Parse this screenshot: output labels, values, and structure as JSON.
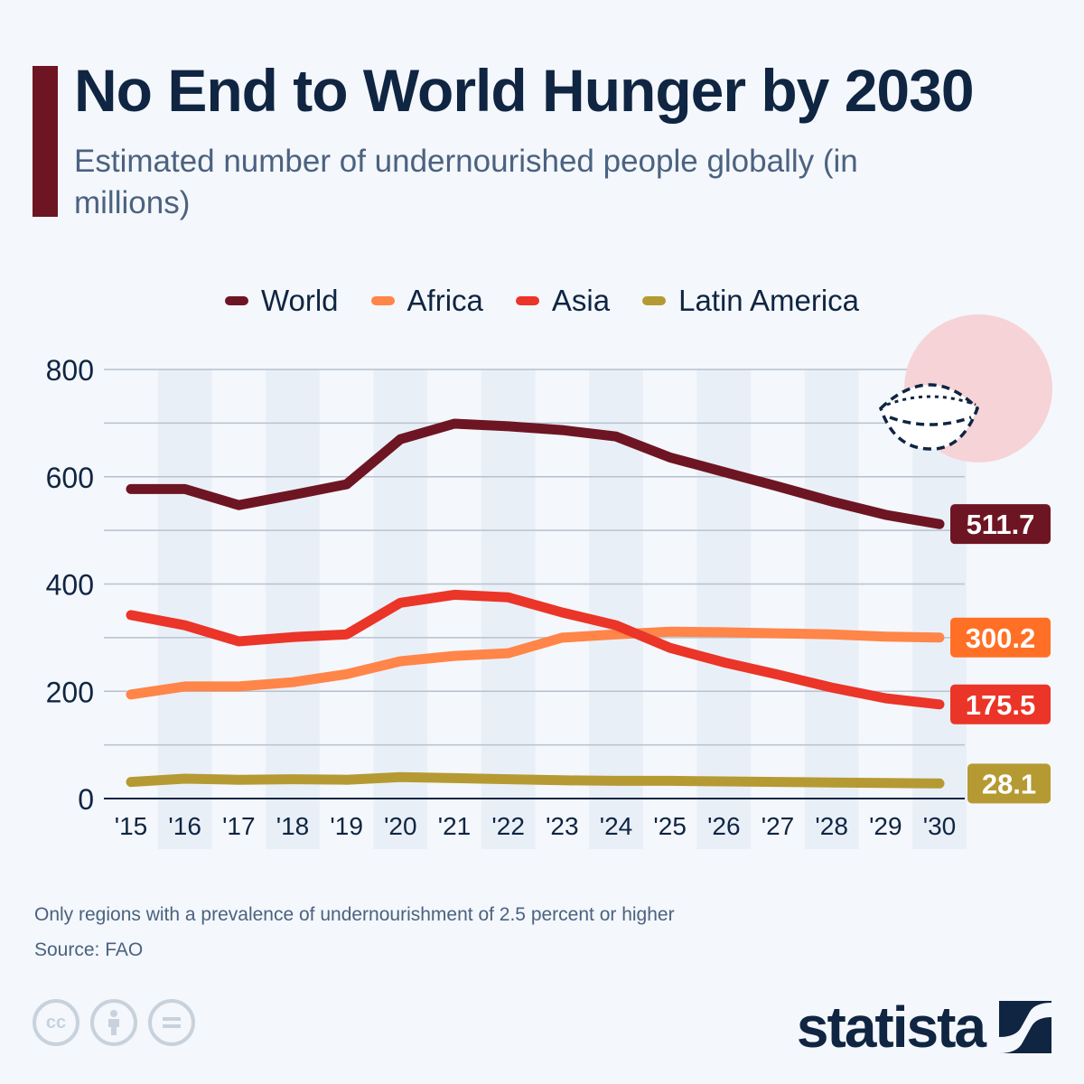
{
  "header": {
    "title": "No End to World Hunger by 2030",
    "subtitle": "Estimated number of undernourished people globally (in millions)"
  },
  "footer": {
    "note": "Only regions with a prevalence of undernourishment of 2.5 percent or higher",
    "source": "Source: FAO",
    "license_icons": [
      "cc-icon",
      "by-icon",
      "nd-icon"
    ],
    "brand": "statista"
  },
  "colors": {
    "background": "#f4f7fb",
    "title": "#0f2542",
    "accent": "#6e1523"
  },
  "chart_data": {
    "type": "line",
    "title": "No End to World Hunger by 2030",
    "subtitle": "Estimated number of undernourished people globally (in millions)",
    "xlabel": "",
    "ylabel": "",
    "categories": [
      "'15",
      "'16",
      "'17",
      "'18",
      "'19",
      "'20",
      "'21",
      "'22",
      "'23",
      "'24",
      "'25",
      "'26",
      "'27",
      "'28",
      "'29",
      "'30"
    ],
    "ylim": [
      0,
      800
    ],
    "yticks": [
      0,
      200,
      400,
      600,
      800
    ],
    "grid": true,
    "legend_position": "top-center",
    "series": [
      {
        "name": "World",
        "color": "#6e1523",
        "label_color": "#6e1523",
        "end_label": "511.7",
        "values": [
          577,
          577,
          547,
          566,
          586,
          670,
          699,
          694,
          687,
          675,
          636,
          609,
          582,
          554,
          529,
          511.7
        ]
      },
      {
        "name": "Africa",
        "color": "#ff8548",
        "label_color": "#ff7026",
        "end_label": "300.2",
        "values": [
          194,
          209,
          209,
          217,
          232,
          256,
          266,
          271,
          300,
          306,
          311,
          310,
          308,
          306,
          302,
          300.2
        ]
      },
      {
        "name": "Asia",
        "color": "#ea3528",
        "label_color": "#ea3528",
        "end_label": "175.5",
        "values": [
          342,
          323,
          293,
          301,
          306,
          365,
          380,
          375,
          347,
          323,
          281,
          254,
          231,
          207,
          187,
          175.5
        ]
      },
      {
        "name": "Latin America",
        "color": "#b59a33",
        "label_color": "#b59a33",
        "end_label": "28.1",
        "values": [
          31,
          37,
          35,
          36,
          35,
          40,
          38,
          36,
          34,
          33,
          33,
          32,
          31,
          30,
          29,
          28.1
        ]
      }
    ]
  }
}
